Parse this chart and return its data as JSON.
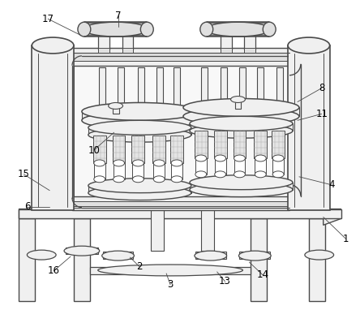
{
  "bg_color": "#ffffff",
  "lc": "#4a4a4a",
  "fl": "#f0f0f0",
  "fm": "#e0e0e0",
  "fd": "#c8c8c8",
  "mg": "#aaaaaa",
  "figsize": [
    4.44,
    3.82
  ],
  "dpi": 100
}
